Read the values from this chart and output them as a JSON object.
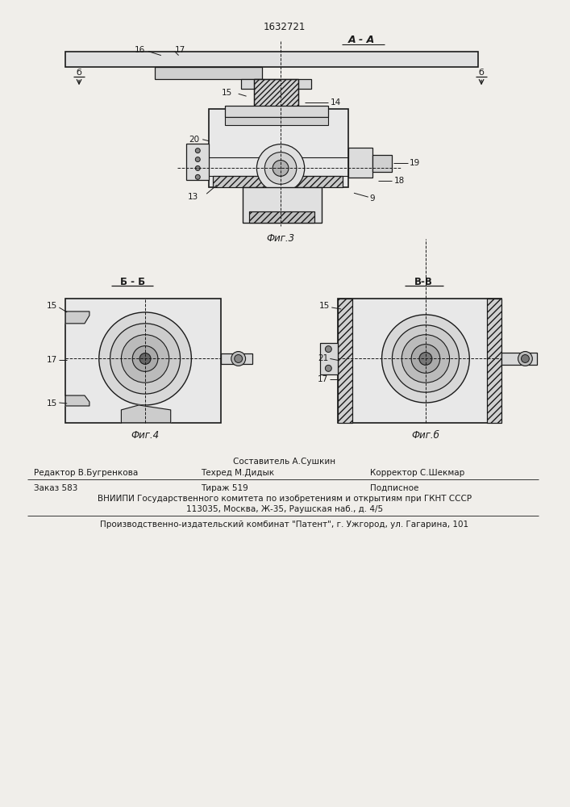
{
  "patent_number": "1632721",
  "bg_color": "#f0eeea",
  "fig3_caption": "Фиг.3",
  "fig4_caption": "Фиг.4",
  "fig5_caption": "Фиг.б",
  "section_AA": "А - А",
  "section_BB": "Б - Б",
  "section_VV": "В-В",
  "label_b_left": "б",
  "label_b_right": "б",
  "footer_line1_center": "Составитель А.Сушкин",
  "footer_line2_left": "Редактор В.Бугренкова",
  "footer_line2_center": "Техред М.Дидык",
  "footer_line2_right": "Корректор С.Шекмар",
  "footer_line3_left": "Заказ 583",
  "footer_line3_center": "Тираж 519",
  "footer_line3_right": "Подписное",
  "footer_line4": "ВНИИПИ Государственного комитета по изобретениям и открытиям при ГКНТ СССР",
  "footer_line5": "113035, Москва, Ж-35, Раушская наб., д. 4/5",
  "footer_line6": "Производственно-издательский комбинат \"Патент\", г. Ужгород, ул. Гагарина, 101",
  "line_color": "#1a1a1a",
  "text_color": "#1a1a1a"
}
